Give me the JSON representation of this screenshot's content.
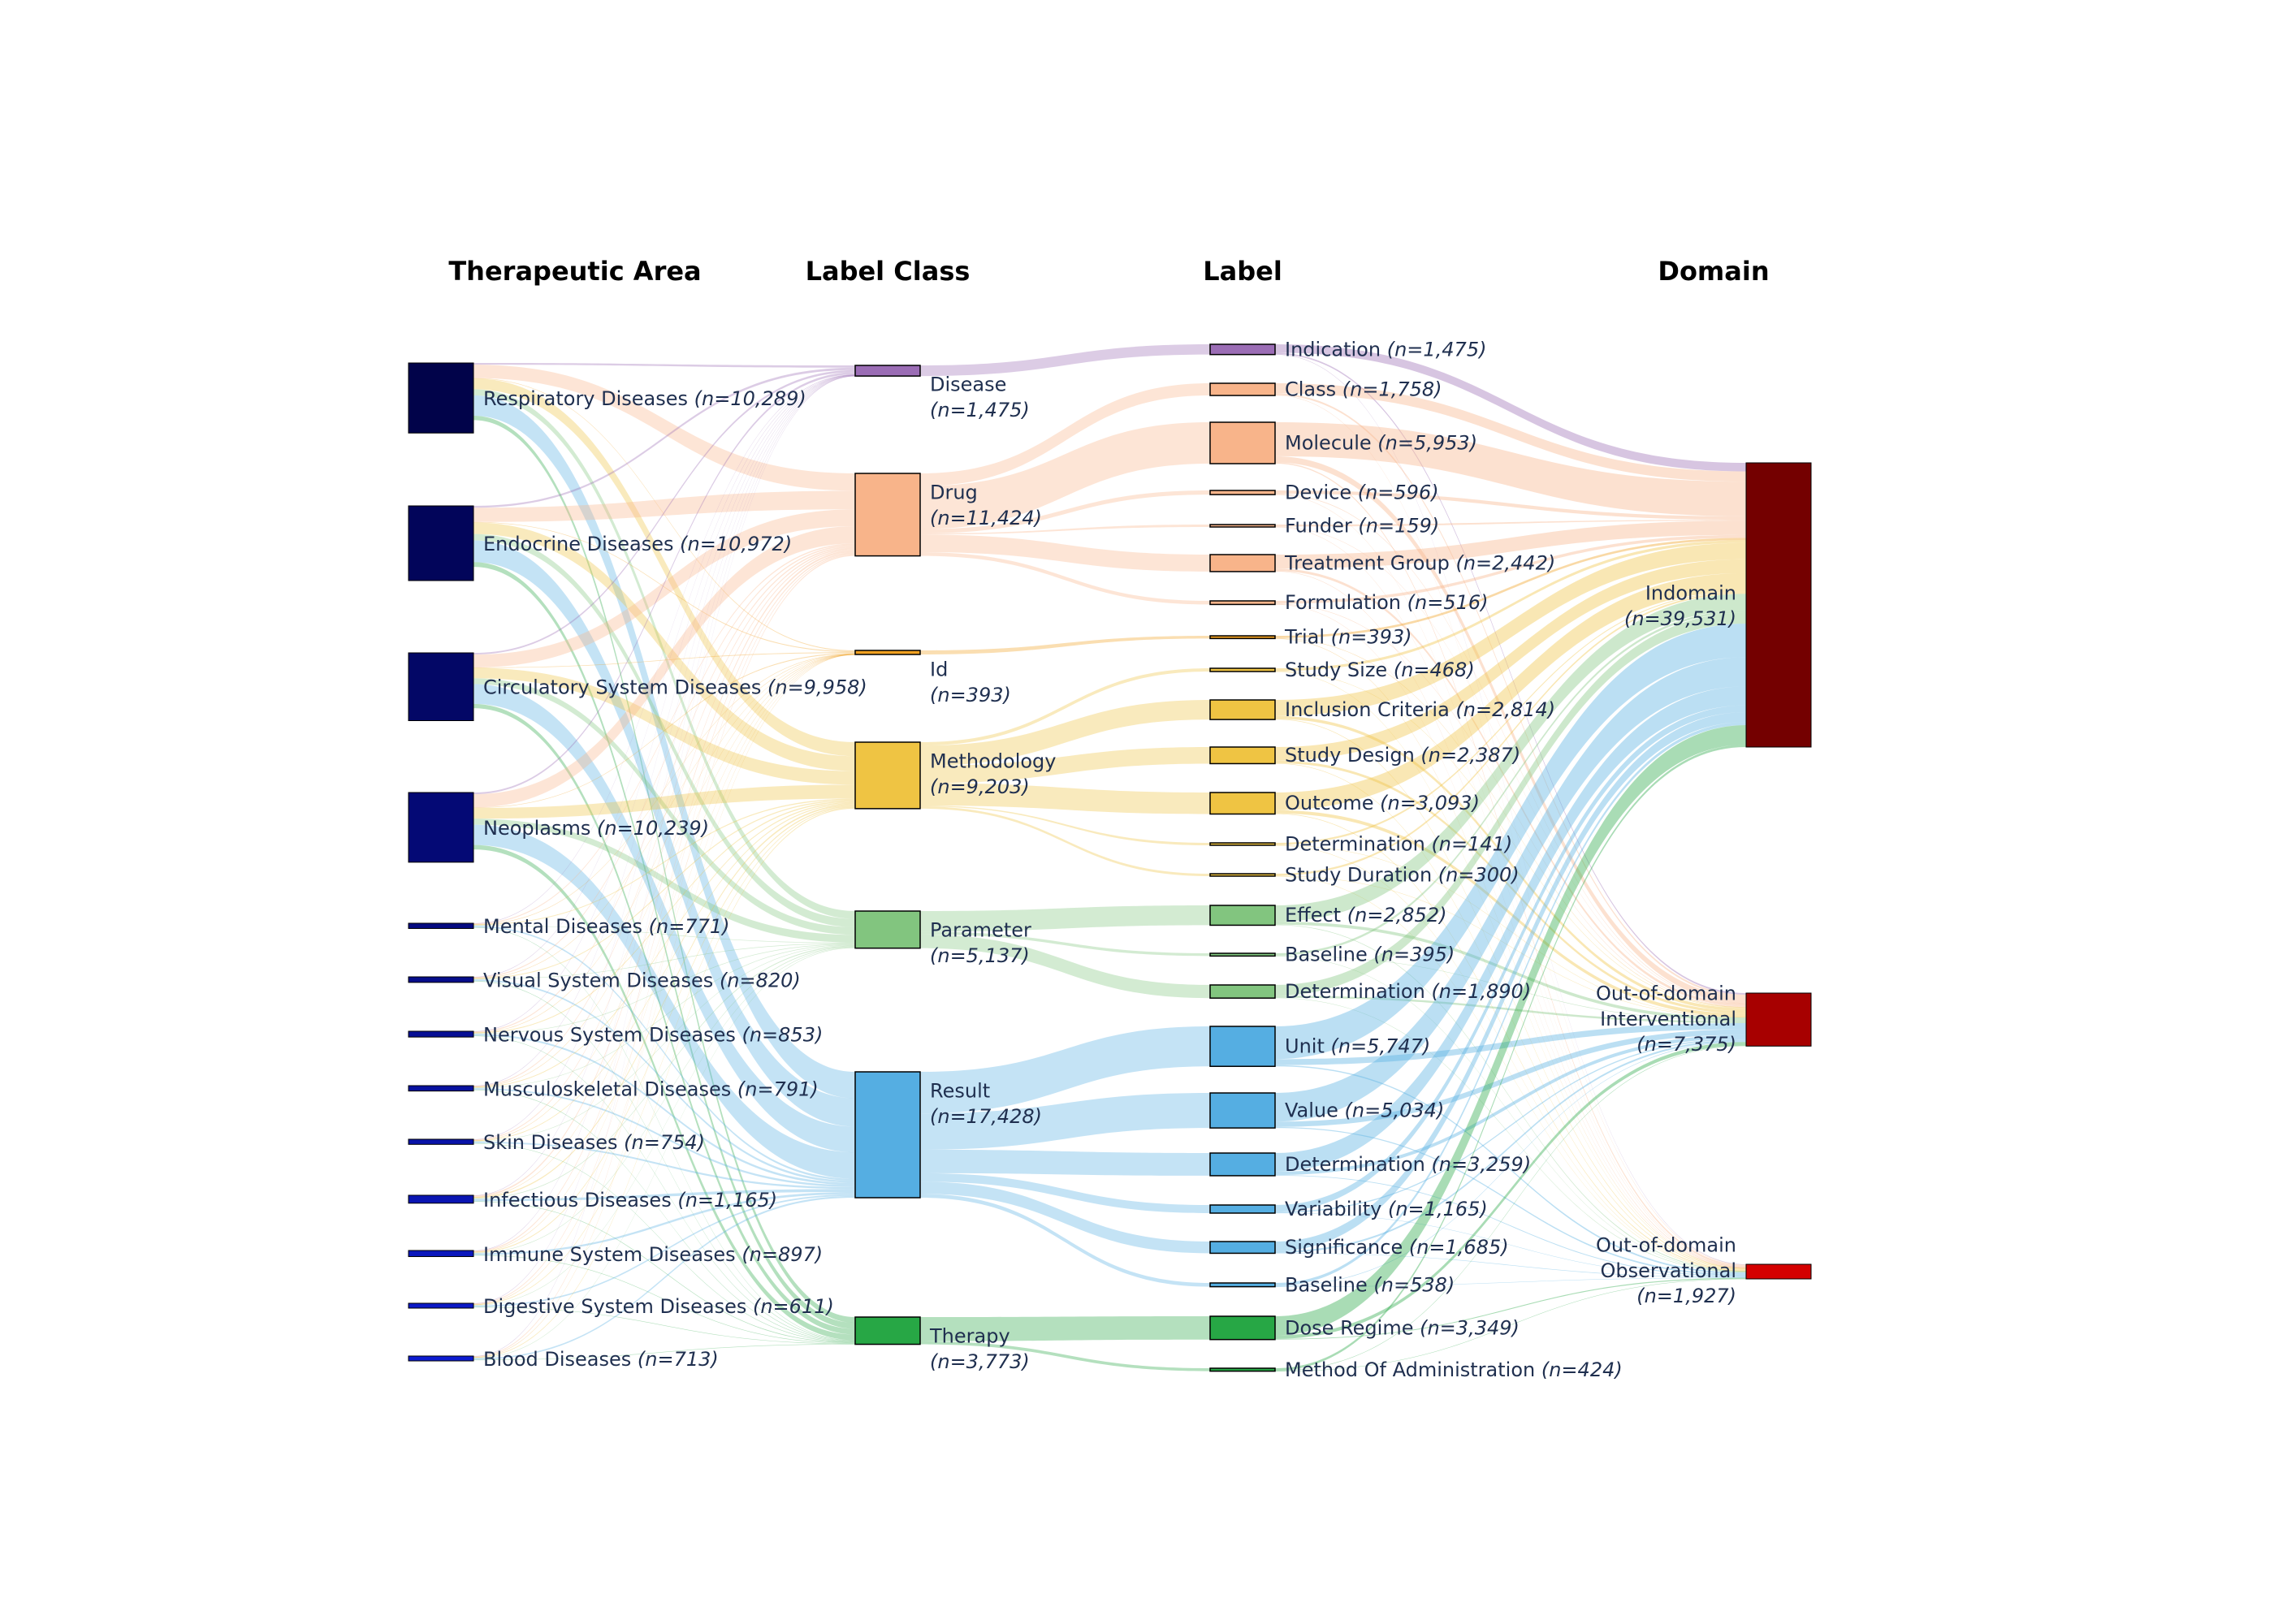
{
  "column_titles": [
    "Therapeutic Area",
    "Label Class",
    "Label",
    "Domain"
  ],
  "colors": {
    "Disease": "#9b6db5",
    "Drug": "#f8b48a",
    "Id": "#f0a020",
    "Methodology": "#efc443",
    "Parameter": "#82c57f",
    "Result": "#55aee2",
    "Therapy": "#27a745",
    "area_node": "#000066",
    "indomain": "#740000",
    "interventional": "#a70000",
    "observational": "#d40000",
    "node_border": "#000000"
  },
  "therapeutic_areas": [
    {
      "name": "Respiratory Diseases",
      "n": "n=10,289",
      "value": 10289,
      "color": "#01034a"
    },
    {
      "name": "Endocrine Diseases",
      "n": "n=10,972",
      "value": 10972,
      "color": "#02055a"
    },
    {
      "name": "Circulatory System Diseases",
      "n": "n=9,958",
      "value": 9958,
      "color": "#030766"
    },
    {
      "name": "Neoplasms",
      "n": "n=10,239",
      "value": 10239,
      "color": "#040975"
    },
    {
      "name": "Mental Diseases",
      "n": "n=771",
      "value": 771,
      "color": "#050b80"
    },
    {
      "name": "Visual System Diseases",
      "n": "n=820",
      "value": 820,
      "color": "#060d8a"
    },
    {
      "name": "Nervous System Diseases",
      "n": "n=853",
      "value": 853,
      "color": "#070f94"
    },
    {
      "name": "Musculoskeletal Diseases",
      "n": "n=791",
      "value": 791,
      "color": "#08119e"
    },
    {
      "name": "Skin Diseases",
      "n": "n=754",
      "value": 754,
      "color": "#0913a8"
    },
    {
      "name": "Infectious Diseases",
      "n": "n=1,165",
      "value": 1165,
      "color": "#0a15b2"
    },
    {
      "name": "Immune System Diseases",
      "n": "n=897",
      "value": 897,
      "color": "#0b17bc"
    },
    {
      "name": "Digestive System Diseases",
      "n": "n=611",
      "value": 611,
      "color": "#0c19c6"
    },
    {
      "name": "Blood Diseases",
      "n": "n=713",
      "value": 713,
      "color": "#0d1bd0"
    }
  ],
  "label_classes": [
    {
      "name": "Disease",
      "n": "n=1,475",
      "value": 1475
    },
    {
      "name": "Drug",
      "n": "n=11,424",
      "value": 11424
    },
    {
      "name": "Id",
      "n": "n=393",
      "value": 393
    },
    {
      "name": "Methodology",
      "n": "n=9,203",
      "value": 9203
    },
    {
      "name": "Parameter",
      "n": "n=5,137",
      "value": 5137
    },
    {
      "name": "Result",
      "n": "n=17,428",
      "value": 17428
    },
    {
      "name": "Therapy",
      "n": "n=3,773",
      "value": 3773
    }
  ],
  "labels": [
    {
      "name": "Indication",
      "n": "n=1,475",
      "value": 1475,
      "class": "Disease"
    },
    {
      "name": "Class",
      "n": "n=1,758",
      "value": 1758,
      "class": "Drug"
    },
    {
      "name": "Molecule",
      "n": "n=5,953",
      "value": 5953,
      "class": "Drug"
    },
    {
      "name": "Device",
      "n": "n=596",
      "value": 596,
      "class": "Drug"
    },
    {
      "name": "Funder",
      "n": "n=159",
      "value": 159,
      "class": "Drug"
    },
    {
      "name": "Treatment Group",
      "n": "n=2,442",
      "value": 2442,
      "class": "Drug"
    },
    {
      "name": "Formulation",
      "n": "n=516",
      "value": 516,
      "class": "Drug"
    },
    {
      "name": "Trial",
      "n": "n=393",
      "value": 393,
      "class": "Id"
    },
    {
      "name": "Study Size",
      "n": "n=468",
      "value": 468,
      "class": "Methodology"
    },
    {
      "name": "Inclusion Criteria",
      "n": "n=2,814",
      "value": 2814,
      "class": "Methodology"
    },
    {
      "name": "Study Design",
      "n": "n=2,387",
      "value": 2387,
      "class": "Methodology"
    },
    {
      "name": "Outcome",
      "n": "n=3,093",
      "value": 3093,
      "class": "Methodology"
    },
    {
      "name": "Determination",
      "n": "n=141",
      "value": 141,
      "class": "Methodology"
    },
    {
      "name": "Study Duration",
      "n": "n=300",
      "value": 300,
      "class": "Methodology"
    },
    {
      "name": "Effect",
      "n": "n=2,852",
      "value": 2852,
      "class": "Parameter"
    },
    {
      "name": "Baseline",
      "n": "n=395",
      "value": 395,
      "class": "Parameter"
    },
    {
      "name": "Determination",
      "n": "n=1,890",
      "value": 1890,
      "class": "Parameter"
    },
    {
      "name": "Unit",
      "n": "n=5,747",
      "value": 5747,
      "class": "Result"
    },
    {
      "name": "Value",
      "n": "n=5,034",
      "value": 5034,
      "class": "Result"
    },
    {
      "name": "Determination",
      "n": "n=3,259",
      "value": 3259,
      "class": "Result"
    },
    {
      "name": "Variability",
      "n": "n=1,165",
      "value": 1165,
      "class": "Result"
    },
    {
      "name": "Significance",
      "n": "n=1,685",
      "value": 1685,
      "class": "Result"
    },
    {
      "name": "Baseline",
      "n": "n=538",
      "value": 538,
      "class": "Result"
    },
    {
      "name": "Dose Regime",
      "n": "n=3,349",
      "value": 3349,
      "class": "Therapy"
    },
    {
      "name": "Method Of Administration",
      "n": "n=424",
      "value": 424,
      "class": "Therapy"
    }
  ],
  "domains": [
    {
      "name": "Indomain",
      "n": "n=39,531",
      "value": 39531
    },
    {
      "name": "Out-of-domain Interventional",
      "n": "n=7,375",
      "value": 7375
    },
    {
      "name": "Out-of-domain Observational",
      "n": "n=1,927",
      "value": 1927
    }
  ]
}
